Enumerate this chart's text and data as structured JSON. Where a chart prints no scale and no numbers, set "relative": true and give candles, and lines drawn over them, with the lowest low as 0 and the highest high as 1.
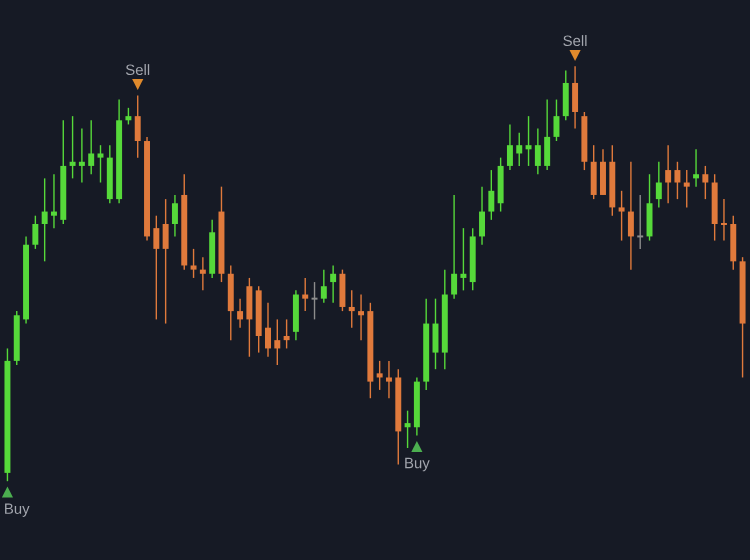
{
  "chart_data": {
    "type": "candlestick",
    "relative": true,
    "categories": [
      null,
      null,
      null,
      null,
      null,
      null,
      null,
      null,
      null,
      null,
      null,
      null,
      null,
      null,
      null,
      null,
      null,
      null,
      null,
      null,
      null,
      null,
      null,
      null,
      null,
      null,
      null,
      null,
      null,
      null,
      null,
      null,
      null,
      null,
      null,
      null,
      null,
      null,
      null,
      null,
      null,
      null,
      null,
      null,
      null,
      null,
      null,
      null,
      null,
      null,
      null,
      null,
      null,
      null,
      null,
      null,
      null,
      null,
      null,
      null,
      null,
      null,
      null,
      null,
      null,
      null,
      null,
      null,
      null,
      null,
      null,
      null,
      null,
      null,
      null,
      null,
      null,
      null,
      null,
      null
    ],
    "ohlc": [
      [
        0.02,
        0.32,
        0,
        0.29
      ],
      [
        0.29,
        0.41,
        0.28,
        0.4
      ],
      [
        0.39,
        0.59,
        0.38,
        0.57
      ],
      [
        0.57,
        0.64,
        0.56,
        0.62
      ],
      [
        0.62,
        0.73,
        0.53,
        0.65
      ],
      [
        0.64,
        0.74,
        0.61,
        0.65
      ],
      [
        0.63,
        0.87,
        0.62,
        0.76
      ],
      [
        0.76,
        0.88,
        0.73,
        0.77
      ],
      [
        0.76,
        0.85,
        0.72,
        0.77
      ],
      [
        0.76,
        0.87,
        0.74,
        0.79
      ],
      [
        0.78,
        0.81,
        0.72,
        0.79
      ],
      [
        0.68,
        0.81,
        0.67,
        0.78
      ],
      [
        0.68,
        0.92,
        0.67,
        0.87
      ],
      [
        0.87,
        0.9,
        0.86,
        0.88
      ],
      [
        0.88,
        0.93,
        0.78,
        0.82
      ],
      [
        0.82,
        0.83,
        0.58,
        0.59
      ],
      [
        0.61,
        0.64,
        0.39,
        0.56
      ],
      [
        0.62,
        0.68,
        0.38,
        0.56
      ],
      [
        0.62,
        0.69,
        0.59,
        0.67
      ],
      [
        0.69,
        0.74,
        0.51,
        0.52
      ],
      [
        0.52,
        0.56,
        0.49,
        0.51
      ],
      [
        0.51,
        0.54,
        0.46,
        0.5
      ],
      [
        0.5,
        0.63,
        0.49,
        0.6
      ],
      [
        0.65,
        0.71,
        0.48,
        0.5
      ],
      [
        0.5,
        0.52,
        0.34,
        0.41
      ],
      [
        0.41,
        0.44,
        0.37,
        0.39
      ],
      [
        0.47,
        0.49,
        0.3,
        0.39
      ],
      [
        0.46,
        0.47,
        0.31,
        0.35
      ],
      [
        0.37,
        0.43,
        0.3,
        0.32
      ],
      [
        0.34,
        0.39,
        0.28,
        0.32
      ],
      [
        0.35,
        0.39,
        0.32,
        0.34
      ],
      [
        0.36,
        0.46,
        0.34,
        0.45
      ],
      [
        0.45,
        0.49,
        0.41,
        0.44
      ],
      [
        0.44,
        0.48,
        0.39,
        0.44
      ],
      [
        0.44,
        0.51,
        0.43,
        0.47
      ],
      [
        0.48,
        0.52,
        0.43,
        0.5
      ],
      [
        0.5,
        0.51,
        0.41,
        0.42
      ],
      [
        0.42,
        0.46,
        0.37,
        0.41
      ],
      [
        0.41,
        0.45,
        0.34,
        0.4
      ],
      [
        0.41,
        0.43,
        0.2,
        0.24
      ],
      [
        0.26,
        0.29,
        0.22,
        0.25
      ],
      [
        0.25,
        0.29,
        0.2,
        0.24
      ],
      [
        0.25,
        0.27,
        0.04,
        0.12
      ],
      [
        0.13,
        0.17,
        0.08,
        0.14
      ],
      [
        0.13,
        0.25,
        0.11,
        0.24
      ],
      [
        0.24,
        0.44,
        0.22,
        0.38
      ],
      [
        0.31,
        0.44,
        0.27,
        0.38
      ],
      [
        0.31,
        0.51,
        0.27,
        0.45
      ],
      [
        0.45,
        0.69,
        0.44,
        0.5
      ],
      [
        0.49,
        0.61,
        0.46,
        0.5
      ],
      [
        0.48,
        0.61,
        0.46,
        0.59
      ],
      [
        0.59,
        0.71,
        0.57,
        0.65
      ],
      [
        0.65,
        0.75,
        0.63,
        0.7
      ],
      [
        0.67,
        0.78,
        0.65,
        0.76
      ],
      [
        0.76,
        0.86,
        0.75,
        0.81
      ],
      [
        0.79,
        0.84,
        0.76,
        0.81
      ],
      [
        0.8,
        0.88,
        0.76,
        0.81
      ],
      [
        0.76,
        0.85,
        0.74,
        0.81
      ],
      [
        0.76,
        0.92,
        0.75,
        0.83
      ],
      [
        0.83,
        0.92,
        0.82,
        0.88
      ],
      [
        0.88,
        0.99,
        0.87,
        0.96
      ],
      [
        0.96,
        1.0,
        0.85,
        0.89
      ],
      [
        0.88,
        0.89,
        0.75,
        0.77
      ],
      [
        0.77,
        0.81,
        0.68,
        0.69
      ],
      [
        0.77,
        0.8,
        0.69,
        0.69
      ],
      [
        0.77,
        0.81,
        0.64,
        0.66
      ],
      [
        0.66,
        0.7,
        0.58,
        0.65
      ],
      [
        0.65,
        0.77,
        0.51,
        0.59
      ],
      [
        0.59,
        0.69,
        0.56,
        0.59
      ],
      [
        0.59,
        0.74,
        0.58,
        0.67
      ],
      [
        0.68,
        0.77,
        0.66,
        0.72
      ],
      [
        0.75,
        0.81,
        0.67,
        0.72
      ],
      [
        0.75,
        0.77,
        0.68,
        0.72
      ],
      [
        0.72,
        0.75,
        0.66,
        0.71
      ],
      [
        0.73,
        0.8,
        0.71,
        0.74
      ],
      [
        0.74,
        0.76,
        0.68,
        0.72
      ],
      [
        0.72,
        0.74,
        0.58,
        0.62
      ],
      [
        0.62,
        0.68,
        0.58,
        0.62
      ],
      [
        0.62,
        0.64,
        0.51,
        0.53
      ],
      [
        0.53,
        0.54,
        0.25,
        0.38
      ]
    ],
    "colors": [
      "#56d93a",
      "#56d93a",
      "#56d93a",
      "#56d93a",
      "#56d93a",
      "#56d93a",
      "#56d93a",
      "#56d93a",
      "#56d93a",
      "#56d93a",
      "#56d93a",
      "#56d93a",
      "#56d93a",
      "#56d93a",
      "#e07a3c",
      "#e07a3c",
      "#e07a3c",
      "#e07a3c",
      "#56d93a",
      "#e07a3c",
      "#e07a3c",
      "#e07a3c",
      "#56d93a",
      "#e07a3c",
      "#e07a3c",
      "#e07a3c",
      "#e07a3c",
      "#e07a3c",
      "#e07a3c",
      "#e07a3c",
      "#e07a3c",
      "#56d93a",
      "#e07a3c",
      "#8c8c8c",
      "#56d93a",
      "#56d93a",
      "#e07a3c",
      "#e07a3c",
      "#e07a3c",
      "#e07a3c",
      "#e07a3c",
      "#e07a3c",
      "#e07a3c",
      "#56d93a",
      "#56d93a",
      "#56d93a",
      "#56d93a",
      "#56d93a",
      "#56d93a",
      "#56d93a",
      "#56d93a",
      "#56d93a",
      "#56d93a",
      "#56d93a",
      "#56d93a",
      "#56d93a",
      "#56d93a",
      "#56d93a",
      "#56d93a",
      "#56d93a",
      "#56d93a",
      "#e07a3c",
      "#e07a3c",
      "#e07a3c",
      "#e07a3c",
      "#e07a3c",
      "#e07a3c",
      "#e07a3c",
      "#8c8c8c",
      "#56d93a",
      "#56d93a",
      "#e07a3c",
      "#e07a3c",
      "#e07a3c",
      "#56d93a",
      "#e07a3c",
      "#e07a3c",
      "#e07a3c",
      "#e07a3c",
      "#e07a3c"
    ],
    "annotations": [
      "Buy",
      "Sell",
      "Buy",
      "Sell"
    ]
  }
}
